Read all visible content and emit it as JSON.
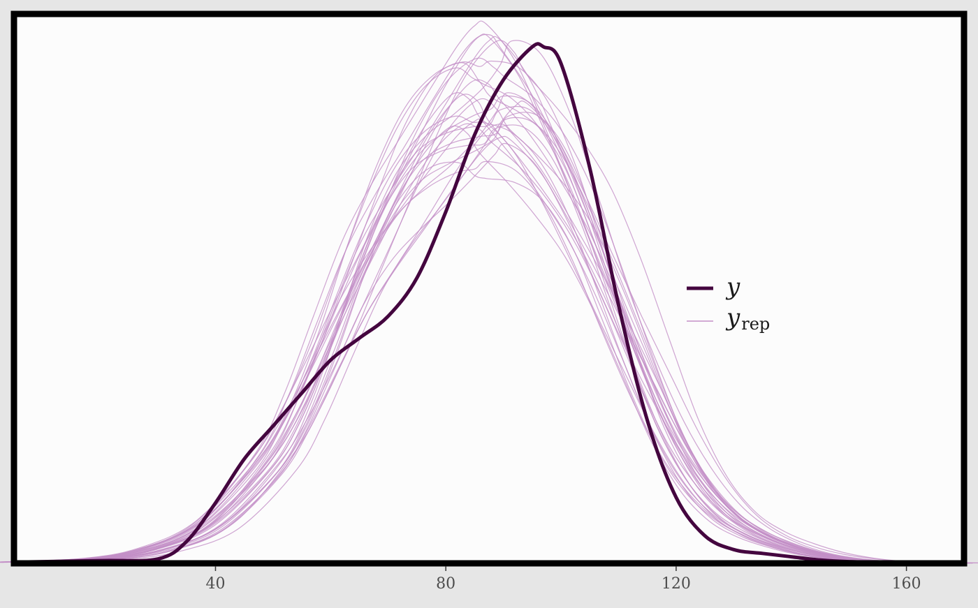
{
  "chart_data": {
    "type": "line",
    "title": "",
    "xlabel": "",
    "ylabel": "",
    "xlim": [
      5,
      170
    ],
    "ylim": [
      0,
      1.0
    ],
    "x_ticks": [
      40,
      80,
      120,
      160
    ],
    "x_tick_labels": [
      "40",
      "80",
      "120",
      "160"
    ],
    "y_axis": "hidden",
    "grid": false,
    "legend_position": "right",
    "legend": [
      {
        "label": "y",
        "subscript": ""
      },
      {
        "label": "y",
        "subscript": "rep"
      }
    ],
    "colors": {
      "y": "#44063f",
      "yrep": "#c38fc7",
      "panel_background": "#fcfcfc",
      "plot_background": "#e6e6e6",
      "frame": "#000000"
    },
    "series": [
      {
        "name": "y",
        "x": [
          5,
          20,
          30,
          35,
          40,
          45,
          50,
          55,
          60,
          65,
          70,
          75,
          80,
          85,
          90,
          95,
          97,
          100,
          105,
          110,
          115,
          120,
          125,
          130,
          135,
          140,
          145,
          150,
          160,
          170
        ],
        "y": [
          0.002,
          0.005,
          0.008,
          0.04,
          0.11,
          0.19,
          0.25,
          0.31,
          0.37,
          0.41,
          0.45,
          0.52,
          0.64,
          0.78,
          0.88,
          0.94,
          0.94,
          0.91,
          0.72,
          0.47,
          0.26,
          0.12,
          0.05,
          0.025,
          0.018,
          0.012,
          0.006,
          0.003,
          0.001,
          0.0005
        ]
      }
    ],
    "replicates": {
      "count": 30,
      "x": [
        5,
        20,
        30,
        40,
        50,
        55,
        60,
        65,
        70,
        75,
        80,
        85,
        88,
        90,
        95,
        100,
        105,
        110,
        115,
        120,
        125,
        130,
        135,
        140,
        145,
        150,
        155,
        160,
        170
      ],
      "y_mean": [
        0.002,
        0.008,
        0.025,
        0.07,
        0.18,
        0.27,
        0.39,
        0.52,
        0.63,
        0.72,
        0.79,
        0.84,
        0.85,
        0.85,
        0.81,
        0.73,
        0.62,
        0.49,
        0.36,
        0.24,
        0.15,
        0.09,
        0.055,
        0.033,
        0.018,
        0.009,
        0.004,
        0.002,
        0.0005
      ]
    }
  }
}
